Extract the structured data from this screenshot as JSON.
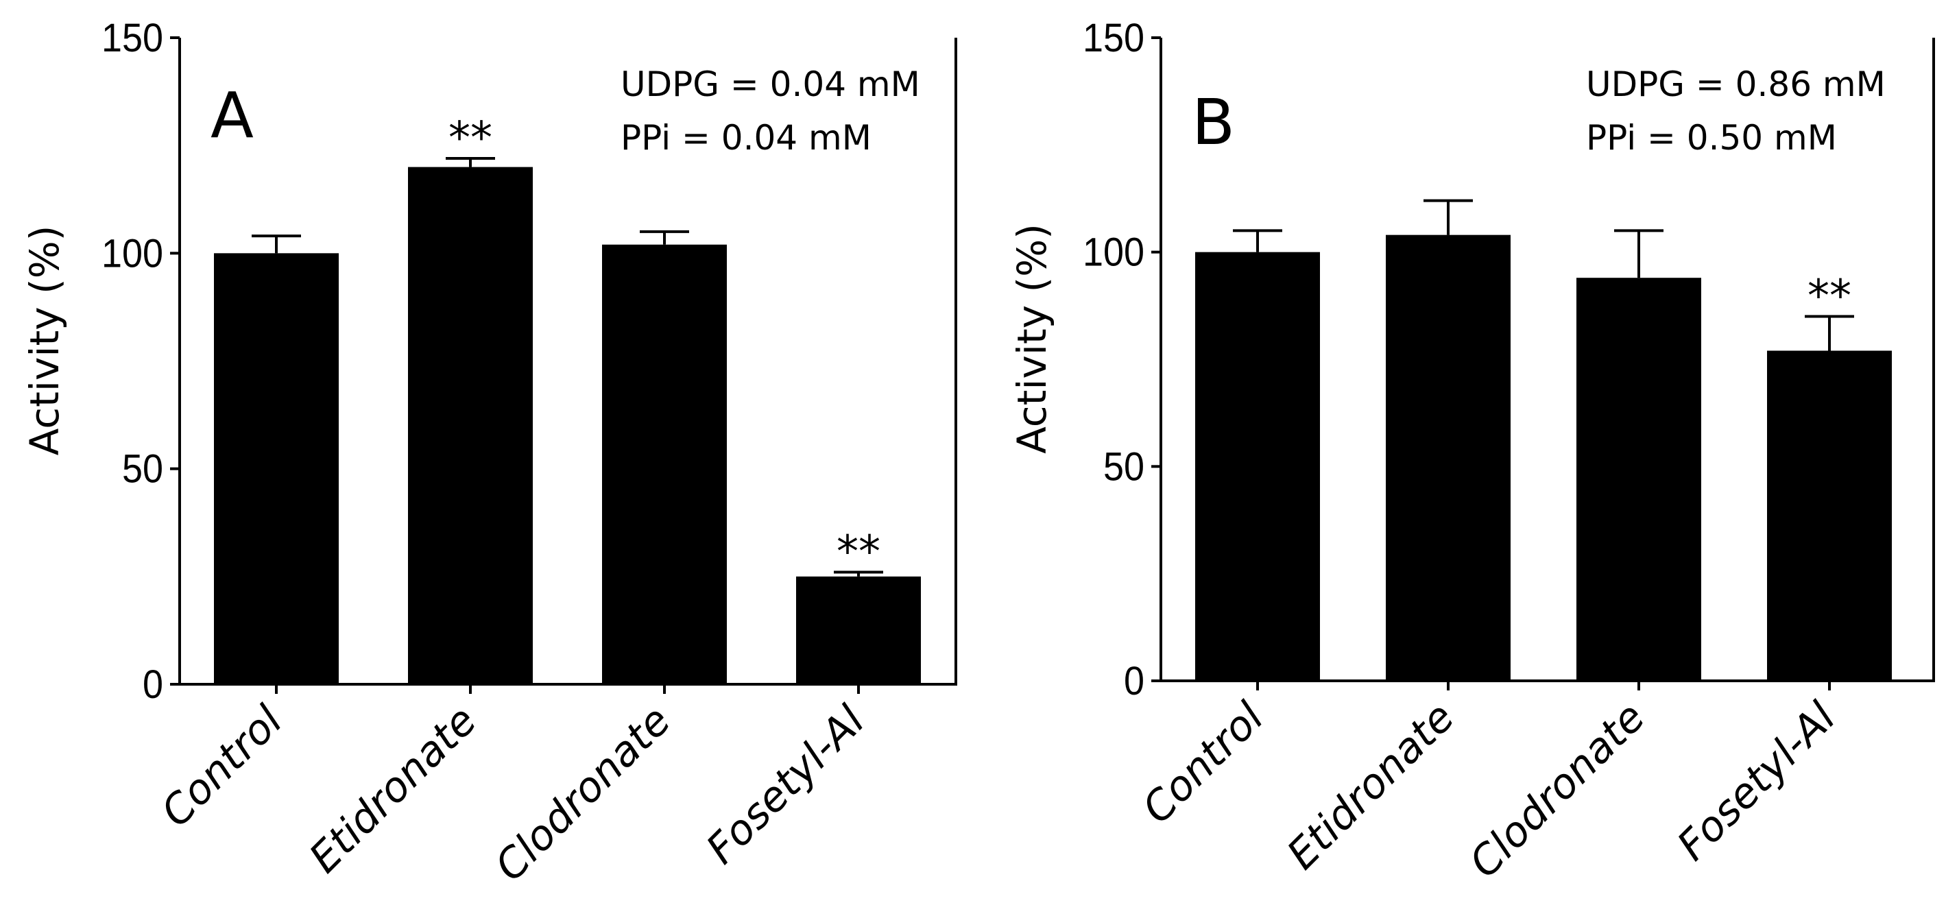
{
  "chart_data": [
    {
      "type": "bar",
      "panel": "A",
      "conditions": [
        "UDPG = 0.04 mM",
        "PPi = 0.04 mM"
      ],
      "categories": [
        "Control",
        "Etidronate",
        "Clodronate",
        "Fosetyl-Al"
      ],
      "values": [
        100,
        120,
        102,
        25
      ],
      "errors": [
        4,
        2,
        3,
        1
      ],
      "significance": [
        "",
        "**",
        "",
        "**"
      ],
      "ylabel": "Activity (%)",
      "xlabel": "",
      "ylim": [
        0,
        150
      ],
      "yticks": [
        0,
        50,
        100,
        150
      ],
      "bar_color": "#000000"
    },
    {
      "type": "bar",
      "panel": "B",
      "conditions": [
        "UDPG = 0.86 mM",
        "PPi = 0.50 mM"
      ],
      "categories": [
        "Control",
        "Etidronate",
        "Clodronate",
        "Fosetyl-Al"
      ],
      "values": [
        100,
        104,
        94,
        77
      ],
      "errors": [
        5,
        8,
        11,
        8
      ],
      "significance": [
        "",
        "",
        "",
        "**"
      ],
      "ylabel": "Activity (%)",
      "xlabel": "",
      "ylim": [
        0,
        150
      ],
      "yticks": [
        0,
        50,
        100,
        150
      ],
      "bar_color": "#000000"
    }
  ]
}
